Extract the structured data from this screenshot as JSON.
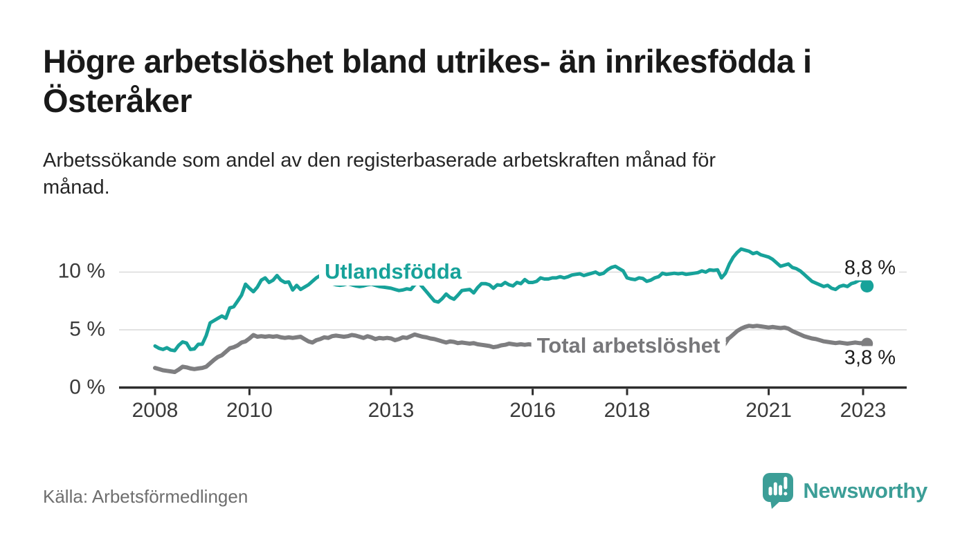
{
  "title": "Högre arbetslöshet bland utrikes- än inrikesfödda i Österåker",
  "title_lines": [
    "Högre arbetslöshet bland utrikes- än inrikesfödda i",
    "Österåker"
  ],
  "subtitle": "Arbetssökande som andel av den registerbaserade arbetskraften månad för månad.",
  "subtitle_lines": [
    "Arbetssökande som andel av den registerbaserade arbetskraften månad för",
    "månad."
  ],
  "source": "Källa: Arbetsförmedlingen",
  "branding": {
    "name": "Newsworthy",
    "icon": "speech-bubble-bar-chart-icon",
    "color": "#3c9e97"
  },
  "colors": {
    "background": "#ffffff",
    "title_text": "#191919",
    "subtitle_text": "#262626",
    "axis_text": "#3a3a3a",
    "axis_line": "#2d2d2d",
    "gridline": "#d9d9d9",
    "value_label_text": "#1d1d1d",
    "source_text": "#6e6e6e",
    "series_utlandsfodda": "#17a29a",
    "series_total": "#7e7e80"
  },
  "chart_data": {
    "type": "line",
    "frequency": "monthly",
    "x_start_year": 2008,
    "x_start_month": 1,
    "x_end_year": 2023,
    "x_end_month": 2,
    "x_ticks": [
      2008,
      2010,
      2013,
      2016,
      2018,
      2021,
      2023
    ],
    "x_tick_labels": [
      "2008",
      "2010",
      "2013",
      "2016",
      "2018",
      "2021",
      "2023"
    ],
    "y_tick_labels": [
      "10 %",
      "5 %",
      "0 %"
    ],
    "y_tick_values": [
      10,
      5,
      0
    ],
    "ylim": [
      0,
      12.6
    ],
    "grid": "horizontal-only",
    "legend": "inline-labels",
    "series": [
      {
        "name": "Utlandsfödda",
        "color": "#17a29a",
        "end_label": "8,8 %",
        "end_value": 8.8,
        "values": [
          3.6,
          3.4,
          3.3,
          3.45,
          3.25,
          3.2,
          3.65,
          3.95,
          3.85,
          3.3,
          3.35,
          3.75,
          3.75,
          4.5,
          5.6,
          5.8,
          6.0,
          6.2,
          6.0,
          6.9,
          7.0,
          7.5,
          8.0,
          8.95,
          8.6,
          8.3,
          8.7,
          9.3,
          9.5,
          9.1,
          9.3,
          9.7,
          9.3,
          9.1,
          9.15,
          8.45,
          8.85,
          8.5,
          8.7,
          8.9,
          9.2,
          9.5,
          9.7,
          9.4,
          9.2,
          9.0,
          8.9,
          8.85,
          8.9,
          9.0,
          8.9,
          8.8,
          8.75,
          8.8,
          8.9,
          8.95,
          8.85,
          8.75,
          8.7,
          8.65,
          8.6,
          8.5,
          8.4,
          8.45,
          8.55,
          8.5,
          8.9,
          9.1,
          8.7,
          8.3,
          7.9,
          7.5,
          7.4,
          7.7,
          8.1,
          7.8,
          7.65,
          8.0,
          8.4,
          8.45,
          8.5,
          8.2,
          8.65,
          9.0,
          9.0,
          8.9,
          8.6,
          8.9,
          8.85,
          9.1,
          8.9,
          8.8,
          9.1,
          9.0,
          9.35,
          9.1,
          9.1,
          9.2,
          9.5,
          9.4,
          9.4,
          9.5,
          9.5,
          9.6,
          9.5,
          9.6,
          9.75,
          9.8,
          9.85,
          9.7,
          9.8,
          9.9,
          10.0,
          9.8,
          9.9,
          10.2,
          10.4,
          10.5,
          10.3,
          10.1,
          9.5,
          9.4,
          9.35,
          9.5,
          9.45,
          9.2,
          9.3,
          9.5,
          9.6,
          9.9,
          9.8,
          9.85,
          9.9,
          9.85,
          9.9,
          9.8,
          9.85,
          9.9,
          9.95,
          10.1,
          10.0,
          10.2,
          10.15,
          10.2,
          9.5,
          9.9,
          10.7,
          11.3,
          11.7,
          12.0,
          11.9,
          11.8,
          11.6,
          11.7,
          11.5,
          11.4,
          11.3,
          11.1,
          10.8,
          10.5,
          10.6,
          10.7,
          10.4,
          10.3,
          10.1,
          9.8,
          9.5,
          9.2,
          9.05,
          8.9,
          8.75,
          8.85,
          8.6,
          8.5,
          8.75,
          8.85,
          8.75,
          9.0,
          9.1,
          9.3,
          9.3,
          8.8
        ]
      },
      {
        "name": "Total arbetslöshet",
        "color": "#7e7e80",
        "end_label": "3,8 %",
        "end_value": 3.8,
        "values": [
          1.7,
          1.6,
          1.5,
          1.45,
          1.4,
          1.35,
          1.55,
          1.8,
          1.75,
          1.65,
          1.6,
          1.65,
          1.7,
          1.8,
          2.1,
          2.4,
          2.65,
          2.8,
          3.1,
          3.4,
          3.5,
          3.65,
          3.9,
          4.0,
          4.25,
          4.55,
          4.4,
          4.45,
          4.4,
          4.45,
          4.4,
          4.45,
          4.35,
          4.3,
          4.35,
          4.3,
          4.35,
          4.4,
          4.2,
          4.0,
          3.9,
          4.1,
          4.2,
          4.35,
          4.3,
          4.45,
          4.5,
          4.45,
          4.4,
          4.45,
          4.55,
          4.5,
          4.4,
          4.3,
          4.45,
          4.35,
          4.2,
          4.3,
          4.25,
          4.3,
          4.25,
          4.1,
          4.2,
          4.35,
          4.3,
          4.45,
          4.6,
          4.5,
          4.4,
          4.35,
          4.25,
          4.2,
          4.1,
          4.0,
          3.9,
          4.0,
          3.95,
          3.85,
          3.9,
          3.85,
          3.8,
          3.85,
          3.75,
          3.7,
          3.65,
          3.6,
          3.5,
          3.55,
          3.65,
          3.7,
          3.8,
          3.75,
          3.7,
          3.75,
          3.7,
          3.75,
          3.7,
          3.75,
          3.7,
          3.65,
          3.7,
          3.75,
          3.8,
          3.75,
          3.7,
          3.65,
          3.7,
          3.75,
          3.7,
          3.65,
          3.6,
          3.65,
          3.6,
          3.55,
          3.6,
          3.65,
          3.6,
          3.55,
          3.5,
          3.55,
          3.5,
          3.45,
          3.4,
          3.45,
          3.4,
          3.35,
          3.4,
          3.45,
          3.5,
          3.45,
          3.5,
          3.55,
          3.6,
          3.65,
          3.6,
          3.65,
          3.7,
          3.75,
          3.8,
          3.85,
          3.8,
          3.85,
          3.9,
          3.95,
          4.0,
          4.1,
          4.3,
          4.6,
          4.9,
          5.1,
          5.25,
          5.35,
          5.3,
          5.35,
          5.3,
          5.25,
          5.2,
          5.25,
          5.2,
          5.15,
          5.2,
          5.1,
          4.9,
          4.75,
          4.6,
          4.45,
          4.35,
          4.25,
          4.2,
          4.1,
          4.0,
          3.95,
          3.9,
          3.85,
          3.9,
          3.85,
          3.8,
          3.85,
          3.9,
          3.85,
          3.85,
          3.8
        ]
      }
    ]
  }
}
